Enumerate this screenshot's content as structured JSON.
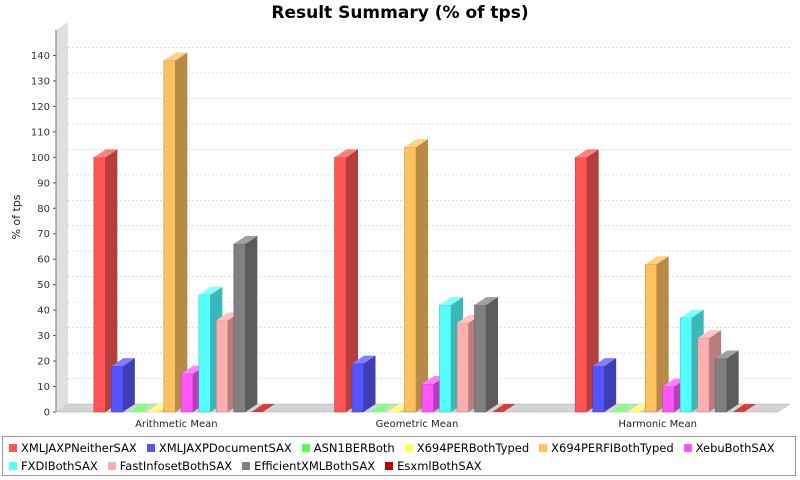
{
  "chart_data": {
    "type": "bar",
    "title": "Result Summary (% of tps)",
    "ylabel": "% of tps",
    "xlabel": "",
    "ylim": [
      0,
      150
    ],
    "yticks": [
      0,
      10,
      20,
      30,
      40,
      50,
      60,
      70,
      80,
      90,
      100,
      110,
      120,
      130,
      140
    ],
    "grid": true,
    "legend_position": "bottom",
    "categories": [
      "Arithmetic Mean",
      "Geometric Mean",
      "Harmonic Mean"
    ],
    "series": [
      {
        "name": "XMLJAXPNeitherSAX",
        "color": "#ff5555",
        "values": [
          100,
          100,
          100
        ]
      },
      {
        "name": "XMLJAXPDocumentSAX",
        "color": "#5555ff",
        "values": [
          18,
          19,
          18
        ]
      },
      {
        "name": "ASN1BERBoth",
        "color": "#55ff55",
        "values": [
          0,
          0,
          0
        ]
      },
      {
        "name": "X694PERBothTyped",
        "color": "#ffff55",
        "values": [
          0,
          0,
          0
        ]
      },
      {
        "name": "X694PERFIBothTyped",
        "color": "#ffc060",
        "values": [
          138,
          104,
          58
        ]
      },
      {
        "name": "XebuBothSAX",
        "color": "#ff55ff",
        "values": [
          15,
          11,
          10
        ]
      },
      {
        "name": "FXDIBothSAX",
        "color": "#55ffff",
        "values": [
          46,
          42,
          37
        ]
      },
      {
        "name": "FastInfosetBothSAX",
        "color": "#ffafaf",
        "values": [
          36,
          35,
          29
        ]
      },
      {
        "name": "EfficientXMLBothSAX",
        "color": "#808080",
        "values": [
          66,
          42,
          21
        ]
      },
      {
        "name": "EsxmlBothSAX",
        "color": "#c00000",
        "values": [
          0,
          0,
          0
        ]
      }
    ]
  }
}
